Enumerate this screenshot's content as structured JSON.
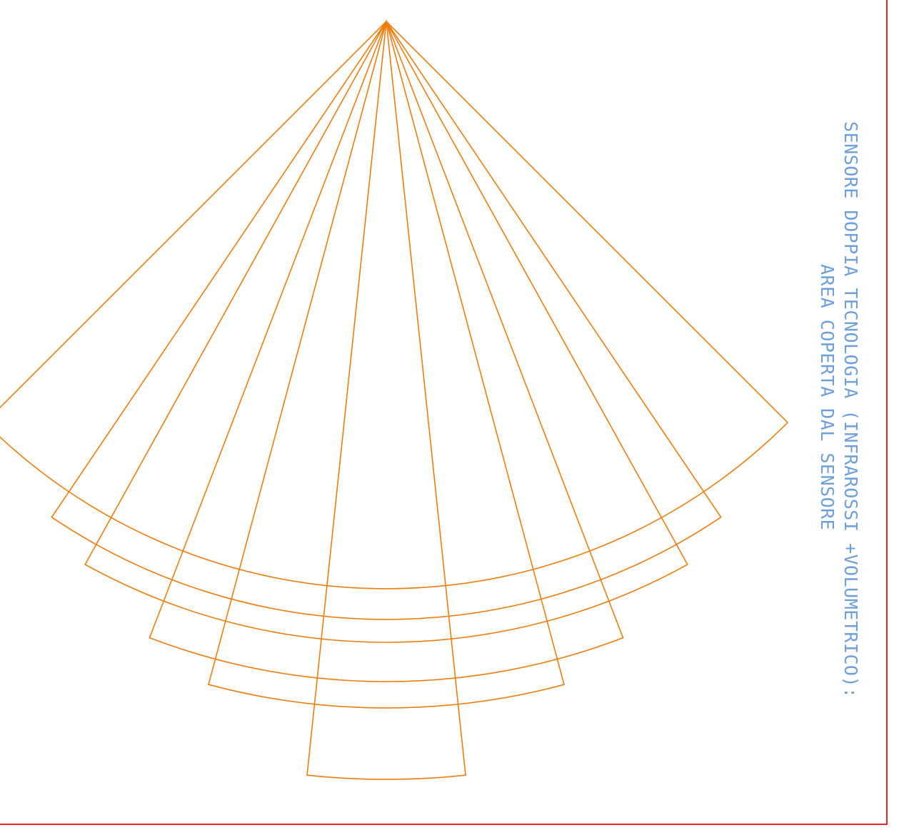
{
  "drawing": {
    "title_line_1": "SENSORE DOPPIA TECNOLOGIA (INFRAROSSI +VOLUMETRICO):",
    "title_line_2": "AREA COPERTA DAL SENSORE"
  },
  "colors": {
    "background": "#ffffff",
    "frame": "#e8262b",
    "detection_zones": "#ed7d0e",
    "annotation_text": "#6f9fd8"
  },
  "detection_zones": [
    {
      "name": "zone-1",
      "half_angle_deg": 45
    },
    {
      "name": "zone-2",
      "half_angle_deg": 34
    },
    {
      "name": "zone-3",
      "half_angle_deg": 29
    },
    {
      "name": "zone-4",
      "half_angle_deg": 21
    },
    {
      "name": "zone-5",
      "half_angle_deg": 15
    },
    {
      "name": "zone-6",
      "half_angle_deg": 6
    }
  ]
}
